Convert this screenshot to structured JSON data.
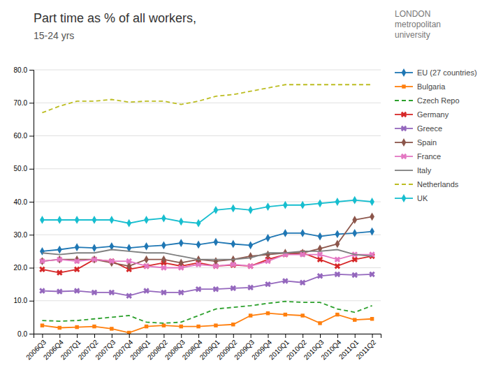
{
  "chart_data": {
    "type": "line",
    "title": "Part time as % of all workers,",
    "subtitle": "15-24 yrs",
    "annotations": [
      "LONDON",
      "metropolitan",
      "university"
    ],
    "categories": [
      "2006Q3",
      "2006Q4",
      "2007Q1",
      "2007Q2",
      "2007Q3",
      "2007Q4",
      "2008Q1",
      "2008Q2",
      "2008Q3",
      "2008Q4",
      "2009Q1",
      "2009Q2",
      "2009Q3",
      "2009Q4",
      "2010Q1",
      "2010Q2",
      "2010Q3",
      "2010Q4",
      "2011Q1",
      "2011Q2"
    ],
    "ylim": [
      0.0,
      80.0
    ],
    "yticks": [
      {
        "value": 0,
        "label": "0.0"
      },
      {
        "value": 10,
        "label": "10.0"
      },
      {
        "value": 20,
        "label": "20.0"
      },
      {
        "value": 30,
        "label": "30.0"
      },
      {
        "value": 40,
        "label": "40.0"
      },
      {
        "value": 50,
        "label": "50.0"
      },
      {
        "value": 60,
        "label": "60.0"
      },
      {
        "value": 70,
        "label": "70.0"
      },
      {
        "value": 80,
        "label": "80.0"
      }
    ],
    "grid": true,
    "legend": "right",
    "series": [
      {
        "name": "EU (27 countries)",
        "marker": "diamond",
        "line_style": "solid",
        "values": [
          25.0,
          25.5,
          26.2,
          26.0,
          26.5,
          26.0,
          26.5,
          26.8,
          27.5,
          27.0,
          27.8,
          27.2,
          26.8,
          29.0,
          30.5,
          30.5,
          29.5,
          30.2,
          30.5,
          31.0
        ]
      },
      {
        "name": "Bulgaria",
        "marker": "square",
        "line_style": "solid",
        "values": [
          2.5,
          1.8,
          2.0,
          2.2,
          1.5,
          0.3,
          2.2,
          2.5,
          2.2,
          2.2,
          2.5,
          2.8,
          5.5,
          6.2,
          5.8,
          5.5,
          3.2,
          5.8,
          4.2,
          4.5
        ]
      },
      {
        "name": "Czech Repo",
        "marker": "none",
        "line_style": "dashed",
        "values": [
          4.0,
          3.8,
          4.0,
          4.5,
          5.0,
          5.5,
          3.5,
          3.2,
          3.5,
          5.5,
          7.5,
          8.0,
          8.5,
          9.2,
          9.8,
          9.5,
          9.5,
          7.5,
          6.5,
          8.5
        ]
      },
      {
        "name": "Germany",
        "marker": "x",
        "line_style": "solid",
        "values": [
          19.5,
          18.5,
          19.5,
          22.5,
          22.0,
          19.5,
          20.5,
          21.5,
          20.5,
          21.5,
          20.5,
          20.8,
          20.5,
          22.5,
          24.0,
          24.5,
          22.5,
          20.5,
          22.5,
          23.5
        ]
      },
      {
        "name": "Greece",
        "marker": "x",
        "line_style": "solid",
        "values": [
          13.0,
          12.8,
          13.0,
          12.5,
          12.5,
          11.5,
          13.0,
          12.5,
          12.5,
          13.5,
          13.5,
          13.8,
          14.0,
          15.0,
          16.0,
          15.5,
          17.5,
          18.0,
          17.8,
          18.0
        ]
      },
      {
        "name": "Spain",
        "marker": "diamond",
        "line_style": "solid",
        "values": [
          22.0,
          22.5,
          22.5,
          22.5,
          21.5,
          20.5,
          22.5,
          22.5,
          21.5,
          22.5,
          22.0,
          22.5,
          23.5,
          24.0,
          24.5,
          24.5,
          25.8,
          27.2,
          34.5,
          35.5
        ]
      },
      {
        "name": "France",
        "marker": "x",
        "line_style": "solid",
        "values": [
          22.0,
          22.5,
          22.0,
          22.5,
          22.0,
          22.0,
          20.5,
          20.0,
          20.0,
          21.0,
          20.5,
          21.0,
          20.5,
          22.0,
          24.0,
          24.0,
          24.0,
          22.5,
          24.0,
          24.0
        ]
      },
      {
        "name": "Italy",
        "marker": "none",
        "line_style": "solid",
        "values": [
          24.5,
          24.0,
          24.5,
          24.5,
          25.5,
          25.0,
          24.5,
          24.5,
          23.5,
          22.5,
          22.5,
          22.5,
          23.0,
          24.5,
          24.5,
          25.0,
          25.0,
          25.5,
          24.0,
          23.5
        ]
      },
      {
        "name": "Netherlands",
        "marker": "none",
        "line_style": "dashed",
        "values": [
          67.0,
          69.0,
          70.5,
          70.5,
          71.0,
          70.2,
          70.5,
          70.5,
          69.5,
          70.5,
          72.0,
          72.5,
          73.5,
          74.5,
          75.5,
          75.5,
          75.5,
          75.5,
          75.5,
          75.5
        ]
      },
      {
        "name": "UK",
        "marker": "diamond",
        "line_style": "solid",
        "values": [
          34.5,
          34.5,
          34.5,
          34.5,
          34.5,
          33.5,
          34.5,
          35.0,
          34.0,
          33.5,
          37.5,
          38.0,
          37.5,
          38.5,
          39.0,
          39.0,
          39.5,
          40.0,
          40.5,
          40.0
        ]
      }
    ]
  }
}
